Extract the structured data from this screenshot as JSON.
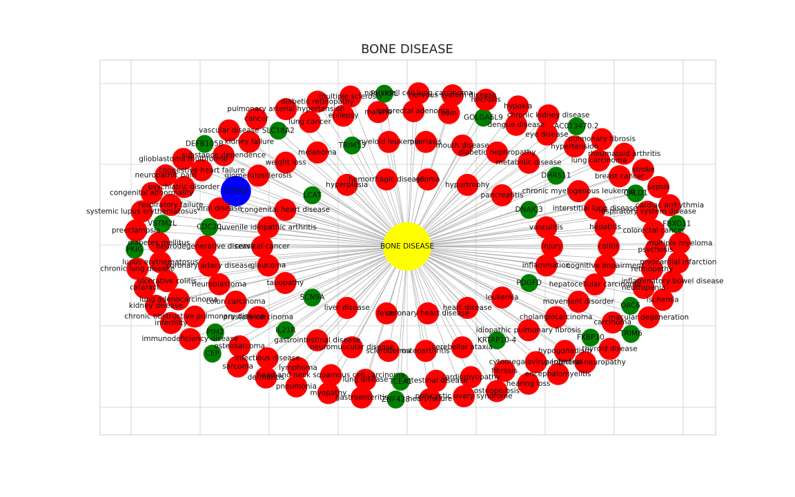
{
  "title": "BONE DISEASE",
  "colors": {
    "center": "#ffff00",
    "disease": "#ff0000",
    "gene": "#008000",
    "covid": "#0000ff",
    "edge": "#b0b0b0",
    "grid": "#cccccc"
  },
  "center_node": "BONE DISEASE",
  "covid_node": "COVID",
  "disease_nodes": [
    "injury",
    "inflammation",
    "leukemia",
    "heart disease",
    "coronary heart disease",
    "fever",
    "liver disease",
    "tauopathy",
    "glaucoma",
    "cervical cancer",
    "juvenile idiopathic arthritis",
    "congenital heart disease",
    "hyperplasia",
    "hemorrhagic disease",
    "glioma",
    "hypertrophy",
    "pancreatitis",
    "vasculitis",
    "hepatocellular carcinoma",
    "movement disorder",
    "cholangiocarcinoma",
    "idiopathic pulmonary fibrosis",
    "cerebellar ataxia",
    "osteoarthritis",
    "scleroderma",
    "neuromuscular disease",
    "gastrointestinal disease",
    "prostate carcinoma",
    "colon carcinoma",
    "neuroblastoma",
    "coronary artery disease",
    "neurodegenerative disease",
    "viral disease",
    "glomerulosclerosis",
    "weight loss",
    "melanoma",
    "myeloid leukemia",
    "psoriasis",
    "mouth disease",
    "diabetic nephropathy",
    "metabolic disease",
    "chronic myelogenous leukemia",
    "interstitial lung disease",
    "hepatitis",
    "colitis",
    "cognitive impairment",
    "hypogonadism",
    "cytomegalovirus infection",
    "fibrosis",
    "cardiomyopathy",
    "intestinal disease",
    "lung disease",
    "head and neck squamous cell carcinoma",
    "lymphoma",
    "infectious disease",
    "osteosarcoma",
    "chronic obstructive pulmonary disease",
    "lung adenocarcinoma",
    "ulcerative colitis",
    "lupus erythematosus",
    "diabetes mellitus",
    "respiratory failure",
    "psychiatric disorder",
    "congestive heart failure",
    "substance dependence",
    "kidney failure",
    "lung cancer",
    "epilepsy",
    "malaria",
    "colorectal adenoma",
    "pain",
    "dengue disease",
    "eye disease",
    "hypertension",
    "lung carcinoma",
    "breast cancer",
    "respiratory system disease",
    "colorectal cancer",
    "psychosis",
    "retinopathy",
    "neutropenia",
    "carcinoma",
    "hearing loss",
    "osteoporosis",
    "polycystic ovary syndrome",
    "heart failure",
    "gastroenteritis",
    "myopathy",
    "pneumonia",
    "dermatitis",
    "sarcoma",
    "immunodeficiency disease",
    "infertility",
    "kidney disease",
    "cataract",
    "chronic lung disease",
    "preeclampsia",
    "systemic lupus erythematosus",
    "congenital abnormality",
    "neuropathic pain",
    "glioblastoma multiforme",
    "vascular disease",
    "cancer",
    "pulmonary arterial hypertension",
    "diabetic retinopathy",
    "multiple sclerosis",
    "non-small cell lung carcinoma",
    "nervous system disease",
    "necrosis",
    "hypoxia",
    "chronic kidney disease",
    "pulmonary fibrosis",
    "rheumatoid arthritis",
    "stroke",
    "sepsis",
    "cardiac arrhythmia",
    "multiple myeloma",
    "myocardial infarction",
    "inflammatory bowel disease",
    "ischemia",
    "macular degeneration",
    "thyroid disease",
    "peripheral neuropathy",
    "encephalomyelitis",
    "liver cancer",
    "neoplasm",
    "hemorrhage",
    "connective tissue disease"
  ],
  "gene_nodes": [
    "PDGFD",
    "SCN9A",
    "LCAT",
    "DNAJC3",
    "KRTAP10-4",
    "IL21R",
    "CDC20",
    "TRIM13",
    "DHRS11",
    "FKBP10",
    "TCEA1",
    "PIM2",
    "VSTM2L",
    "SLC18A2",
    "GOLGA6L9",
    "CALD1",
    "ORC6",
    "ZNF428",
    "CEP",
    "PKIG",
    "DEFB105B",
    "PHYKPL",
    "AC013470.2",
    "FBXO11",
    "TRIM6",
    "AC011452.1",
    "PIGV",
    "ZBP1"
  ]
}
